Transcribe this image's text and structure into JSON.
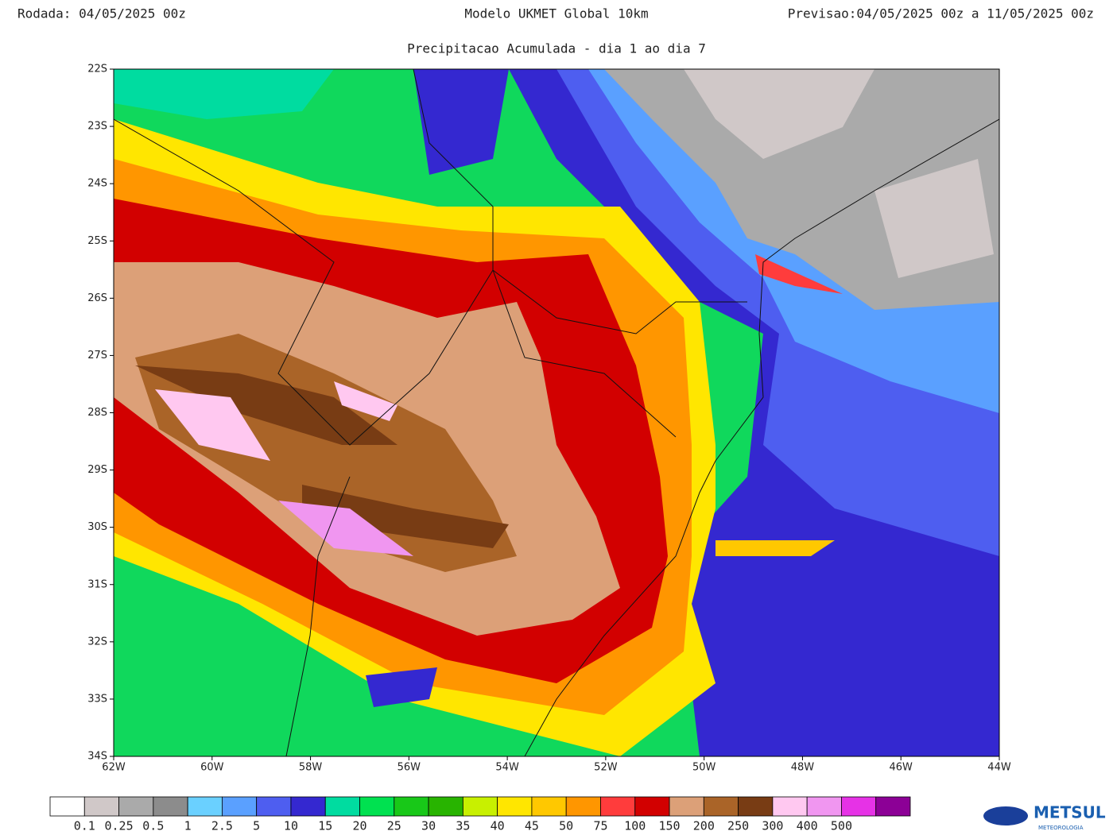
{
  "header": {
    "left": "Rodada: 04/05/2025 00z",
    "center": "Modelo UKMET Global 10km",
    "right": "Previsao:04/05/2025 00z a 11/05/2025 00z",
    "subtitle": "Precipitacao Acumulada - dia 1 ao dia 7"
  },
  "map": {
    "lat_labels": [
      "22S",
      "23S",
      "24S",
      "25S",
      "26S",
      "27S",
      "28S",
      "29S",
      "30S",
      "31S",
      "32S",
      "33S",
      "34S"
    ],
    "lon_labels": [
      "62W",
      "60W",
      "58W",
      "56W",
      "54W",
      "52W",
      "50W",
      "48W",
      "46W",
      "44W"
    ]
  },
  "colorbar": {
    "levels": [
      0.1,
      0.25,
      0.5,
      1,
      2.5,
      5,
      10,
      15,
      20,
      25,
      30,
      35,
      40,
      45,
      50,
      75,
      100,
      150,
      200,
      250,
      300,
      400,
      500
    ],
    "colors": [
      "#ffffff",
      "#d0c8c8",
      "#aaaaaa",
      "#8c8c8c",
      "#6ad0ff",
      "#5aa0ff",
      "#4e5ef0",
      "#3428d0",
      "#00dca0",
      "#00e150",
      "#18c818",
      "#28b400",
      "#c8f000",
      "#ffe600",
      "#ffc800",
      "#ff9600",
      "#ff3c3c",
      "#d20000",
      "#dca078",
      "#aa6428",
      "#783c14",
      "#ffc8f0",
      "#f096f0",
      "#e632e6",
      "#8c0096"
    ]
  },
  "logo": {
    "name": "METSUL",
    "tagline": "METEOROLOGIA"
  }
}
